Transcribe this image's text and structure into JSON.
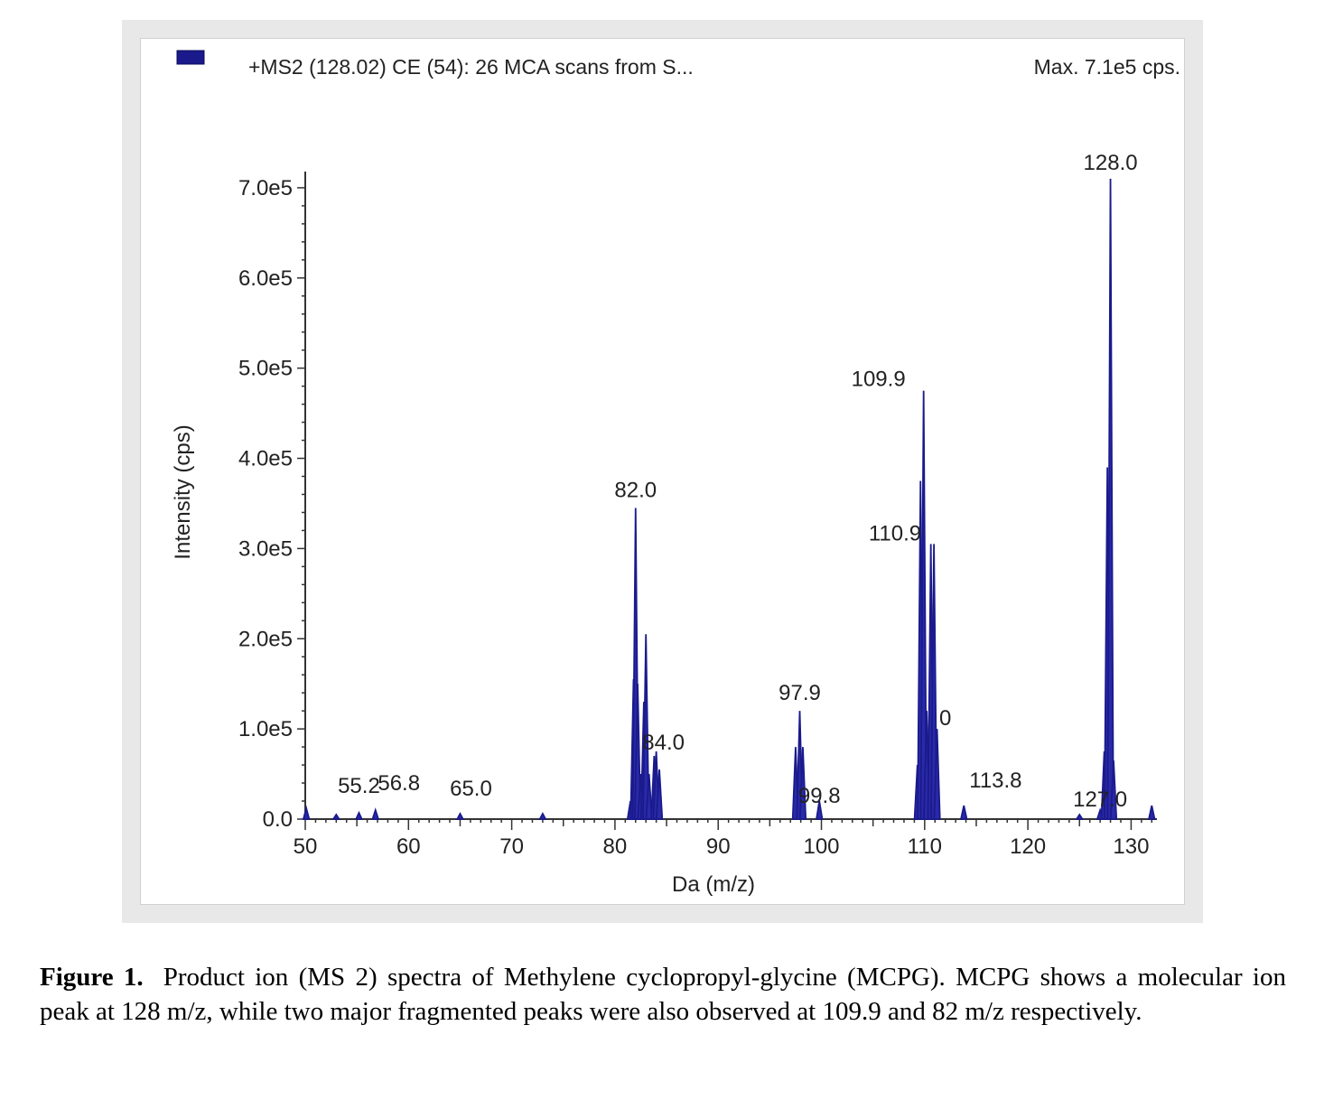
{
  "chart_data": {
    "type": "bar",
    "header": {
      "scan_label": "+MS2 (128.02) CE (54): 26 MCA scans from S...",
      "max_label": "Max. 7.1e5 cps."
    },
    "xlabel": "Da (m/z)",
    "ylabel": "Intensity (cps)",
    "xlim": [
      50,
      132.5
    ],
    "ylim": [
      0,
      770000
    ],
    "x_ticks": [
      50,
      60,
      70,
      80,
      90,
      100,
      110,
      120,
      130
    ],
    "x_tick_labels": [
      "50",
      "60",
      "70",
      "80",
      "90",
      "100",
      "110",
      "120",
      "130"
    ],
    "y_ticks": [
      0,
      100000,
      200000,
      300000,
      400000,
      500000,
      600000,
      700000
    ],
    "y_tick_labels": [
      "0.0",
      "1.0e5",
      "2.0e5",
      "3.0e5",
      "4.0e5",
      "5.0e5",
      "6.0e5",
      "7.0e5"
    ],
    "color": "#1a1a8c",
    "peaks": [
      {
        "x": 50.1,
        "y": 12000
      },
      {
        "x": 53.0,
        "y": 5000
      },
      {
        "x": 55.2,
        "y": 7000
      },
      {
        "x": 56.8,
        "y": 10000
      },
      {
        "x": 65.0,
        "y": 6000
      },
      {
        "x": 73.0,
        "y": 6000
      },
      {
        "x": 81.5,
        "y": 20000
      },
      {
        "x": 81.8,
        "y": 155000
      },
      {
        "x": 82.0,
        "y": 345000
      },
      {
        "x": 82.2,
        "y": 150000
      },
      {
        "x": 82.5,
        "y": 50000
      },
      {
        "x": 82.8,
        "y": 130000
      },
      {
        "x": 83.0,
        "y": 205000
      },
      {
        "x": 83.3,
        "y": 50000
      },
      {
        "x": 83.8,
        "y": 70000
      },
      {
        "x": 84.0,
        "y": 75000
      },
      {
        "x": 84.3,
        "y": 55000
      },
      {
        "x": 97.5,
        "y": 80000
      },
      {
        "x": 97.9,
        "y": 120000
      },
      {
        "x": 98.2,
        "y": 80000
      },
      {
        "x": 99.8,
        "y": 20000
      },
      {
        "x": 109.3,
        "y": 60000
      },
      {
        "x": 109.6,
        "y": 375000
      },
      {
        "x": 109.9,
        "y": 475000
      },
      {
        "x": 110.2,
        "y": 120000
      },
      {
        "x": 110.6,
        "y": 305000
      },
      {
        "x": 110.9,
        "y": 305000
      },
      {
        "x": 111.2,
        "y": 100000
      },
      {
        "x": 113.8,
        "y": 15000
      },
      {
        "x": 125.0,
        "y": 5000
      },
      {
        "x": 127.0,
        "y": 10000
      },
      {
        "x": 127.4,
        "y": 75000
      },
      {
        "x": 127.7,
        "y": 390000
      },
      {
        "x": 128.0,
        "y": 710000
      },
      {
        "x": 128.3,
        "y": 65000
      },
      {
        "x": 132.0,
        "y": 15000
      }
    ],
    "peak_labels": [
      {
        "text": "55.2",
        "x": 55.2,
        "y": 7000
      },
      {
        "text": "56.8",
        "x": 56.8,
        "y": 10000
      },
      {
        "text": "65.0",
        "x": 65.0,
        "y": 6000
      },
      {
        "text": "82.0",
        "x": 82.0,
        "y": 345000
      },
      {
        "text": "84.0",
        "x": 84.0,
        "y": 75000
      },
      {
        "text": "97.9",
        "x": 97.9,
        "y": 120000
      },
      {
        "text": "99.8",
        "x": 99.8,
        "y": 20000
      },
      {
        "text": "109.9",
        "x": 109.9,
        "y": 475000
      },
      {
        "text": "110.9",
        "x": 110.9,
        "y": 305000
      },
      {
        "text": "0",
        "x": 112.0,
        "y": 100000
      },
      {
        "text": "113.8",
        "x": 113.8,
        "y": 15000
      },
      {
        "text": "127.0",
        "x": 127.0,
        "y": 10000
      },
      {
        "text": "128.0",
        "x": 128.0,
        "y": 710000
      }
    ]
  },
  "caption": {
    "label": "Figure 1.",
    "text": "Product ion (MS 2) spectra of Methylene cyclopropyl-glycine (MCPG). MCPG shows a molecular ion peak at 128 m/z, while two major fragmented peaks were also observed at 109.9 and 82 m/z respectively."
  }
}
